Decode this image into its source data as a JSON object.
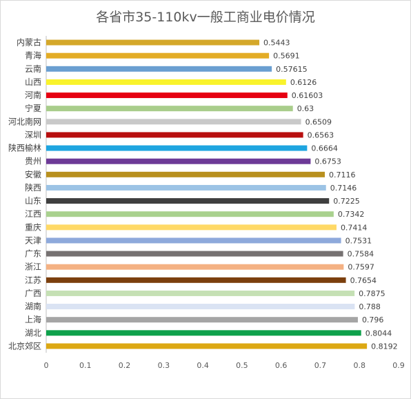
{
  "chart_data": {
    "type": "bar",
    "orientation": "horizontal",
    "title": "各省市35-110kv一般工商业电价情况",
    "xlabel": "",
    "ylabel": "",
    "xlim": [
      0,
      0.9
    ],
    "x_ticks": [
      "0",
      "0.1",
      "0.2",
      "0.3",
      "0.4",
      "0.5",
      "0.6",
      "0.7",
      "0.8",
      "0.9"
    ],
    "grid": false,
    "legend": "none",
    "categories": [
      "内蒙古",
      "青海",
      "云南",
      "山西",
      "河南",
      "宁夏",
      "河北南网",
      "深圳",
      "陕西榆林",
      "贵州",
      "安徽",
      "陕西",
      "山东",
      "江西",
      "重庆",
      "天津",
      "广东",
      "浙江",
      "江苏",
      "广西",
      "湖南",
      "上海",
      "湖北",
      "北京郊区"
    ],
    "values": [
      0.5443,
      0.5691,
      0.57615,
      0.6126,
      0.61603,
      0.63,
      0.6509,
      0.6563,
      0.6664,
      0.6753,
      0.7116,
      0.7146,
      0.7225,
      0.7342,
      0.7414,
      0.7531,
      0.7584,
      0.7597,
      0.7654,
      0.7875,
      0.788,
      0.796,
      0.8044,
      0.8192
    ],
    "value_labels": [
      "0.5443",
      "0.5691",
      "0.57615",
      "0.6126",
      "0.61603",
      "0.63",
      "0.6509",
      "0.6563",
      "0.6664",
      "0.6753",
      "0.7116",
      "0.7146",
      "0.7225",
      "0.7342",
      "0.7414",
      "0.7531",
      "0.7584",
      "0.7597",
      "0.7654",
      "0.7875",
      "0.788",
      "0.796",
      "0.8044",
      "0.8192"
    ],
    "colors": [
      "#D4A82A",
      "#E3AC26",
      "#6A9FD1",
      "#F9F32C",
      "#E60012",
      "#A9CD8B",
      "#C9C9C9",
      "#B80F0F",
      "#1EA5E0",
      "#6D3A97",
      "#B8901E",
      "#9CC3E5",
      "#3F3F3F",
      "#A9D18E",
      "#FFD966",
      "#8EA9DB",
      "#767171",
      "#F4B183",
      "#7B3F0D",
      "#C5E0B4",
      "#DAE3F3",
      "#A5A5A5",
      "#0EA14B",
      "#DCA813"
    ]
  }
}
